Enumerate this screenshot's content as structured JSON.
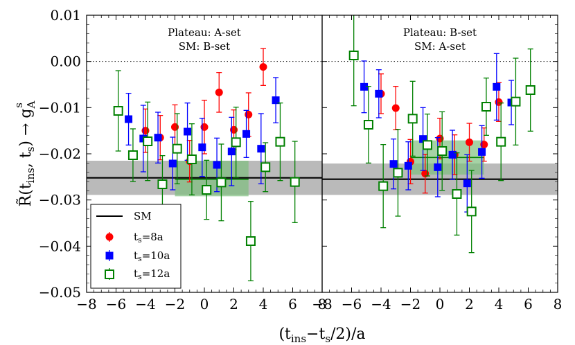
{
  "chart_data": {
    "type": "scatter",
    "xlabel": "(t_ins-t_s/2)/a",
    "ylabel": "R(t_ins, t_s) -> g_A^s",
    "xlim": [
      -8,
      8
    ],
    "ylim": [
      -0.05,
      0.01
    ],
    "xticks": [
      "−8",
      "−6",
      "−4",
      "−2",
      "0",
      "2",
      "4",
      "6",
      "8"
    ],
    "xticks_right": [
      "−8",
      "−6",
      "−4",
      "−2",
      "0",
      "2",
      "4",
      "6",
      "8"
    ],
    "yticks": [
      "0.01",
      "0.00",
      "−0.01",
      "−0.02",
      "−0.03",
      "−0.04",
      "−0.05"
    ],
    "legend": {
      "sm": "SM",
      "ts8": "t_s=8a",
      "ts10": "t_s=10a",
      "ts12": "t_s=12a"
    },
    "colors": {
      "ts8": "#ff0000",
      "ts10": "#0000ff",
      "ts12": "#008000",
      "sm_band": "#8c8c8c",
      "plateau_band": "#7fbf7f"
    },
    "panels": [
      {
        "name": "left",
        "line1": "Plateau: A-set",
        "line2": "SM: B-set",
        "sm_value": -0.0252,
        "sm_band": [
          -0.0289,
          -0.0215
        ],
        "plateau": {
          "x": [
            -2,
            3
          ],
          "value": -0.0255,
          "band": [
            -0.0292,
            -0.0215
          ]
        },
        "series": [
          {
            "key": "ts8",
            "x": [
              -4,
              -3,
              -2,
              -1,
              0,
              1,
              2,
              3,
              4
            ],
            "y": [
              -0.015,
              -0.0165,
              -0.0142,
              -0.0216,
              -0.0142,
              -0.0067,
              -0.0148,
              -0.0115,
              -0.0012
            ],
            "err": [
              0.0047,
              0.0048,
              0.0048,
              0.0045,
              0.0058,
              0.0043,
              0.0043,
              0.0047,
              0.004
            ]
          },
          {
            "key": "ts10",
            "x": [
              -5,
              -4,
              -3,
              -2,
              -1,
              0,
              1,
              2,
              3,
              4,
              5
            ],
            "y": [
              -0.0125,
              -0.0167,
              -0.0165,
              -0.0221,
              -0.0152,
              -0.0186,
              -0.0224,
              -0.0195,
              -0.0157,
              -0.0189,
              -0.0084
            ],
            "err": [
              0.0056,
              0.0072,
              0.0055,
              0.0057,
              0.0062,
              0.0063,
              0.0058,
              0.0074,
              0.0051,
              0.0076,
              0.0049
            ]
          },
          {
            "key": "ts12",
            "x": [
              -6,
              -5,
              -4,
              -3,
              -2,
              -1,
              0,
              1,
              2,
              3,
              4,
              5,
              6
            ],
            "y": [
              -0.0107,
              -0.0203,
              -0.0173,
              -0.0266,
              -0.0189,
              -0.0212,
              -0.0278,
              -0.0262,
              -0.0175,
              -0.0389,
              -0.0229,
              -0.0174,
              -0.0261
            ],
            "err": [
              0.0087,
              0.0057,
              0.0085,
              0.0062,
              0.0076,
              0.0077,
              0.0064,
              0.0083,
              0.0076,
              0.0086,
              0.0053,
              0.0084,
              0.0088
            ]
          }
        ]
      },
      {
        "name": "right",
        "line1": "Plateau: B-set",
        "line2": "SM: A-set",
        "sm_value": -0.0255,
        "sm_band": [
          -0.0289,
          -0.0221
        ],
        "plateau": {
          "x": [
            -2,
            3
          ],
          "value": -0.0208,
          "band": [
            -0.0245,
            -0.0171
          ]
        },
        "series": [
          {
            "key": "ts8",
            "x": [
              -4,
              -3,
              -2,
              -1,
              0,
              1,
              2,
              3,
              4
            ],
            "y": [
              -0.007,
              -0.0101,
              -0.0217,
              -0.0243,
              -0.0167,
              -0.0202,
              -0.0175,
              -0.018,
              -0.0088
            ],
            "err": [
              0.0043,
              0.0047,
              0.0048,
              0.0042,
              0.0044,
              0.0043,
              0.0041,
              0.0036,
              0.0042
            ]
          },
          {
            "key": "ts10",
            "x": [
              -5,
              -4,
              -3,
              -2,
              -1,
              0,
              1,
              2,
              3,
              4,
              5
            ],
            "y": [
              -0.0055,
              -0.007,
              -0.0222,
              -0.0226,
              -0.0168,
              -0.0229,
              -0.0202,
              -0.0264,
              -0.0196,
              -0.0055,
              -0.0089
            ],
            "err": [
              0.0056,
              0.0052,
              0.0054,
              0.0052,
              0.0068,
              0.0064,
              0.0053,
              0.0062,
              0.0057,
              0.0072,
              0.0048
            ]
          },
          {
            "key": "ts12",
            "x": [
              -6,
              -5,
              -4,
              -3,
              -2,
              -1,
              0,
              1,
              2,
              3,
              4,
              5,
              6
            ],
            "y": [
              0.0013,
              -0.0137,
              -0.027,
              -0.0241,
              -0.0124,
              -0.0181,
              -0.0194,
              -0.0287,
              -0.0325,
              -0.0098,
              -0.0174,
              -0.0087,
              -0.0062
            ],
            "err": [
              0.0109,
              0.0083,
              0.009,
              0.0094,
              0.0081,
              0.0067,
              0.0085,
              0.0089,
              0.0089,
              0.0062,
              0.0084,
              0.0094,
              0.0089
            ]
          }
        ]
      }
    ]
  }
}
